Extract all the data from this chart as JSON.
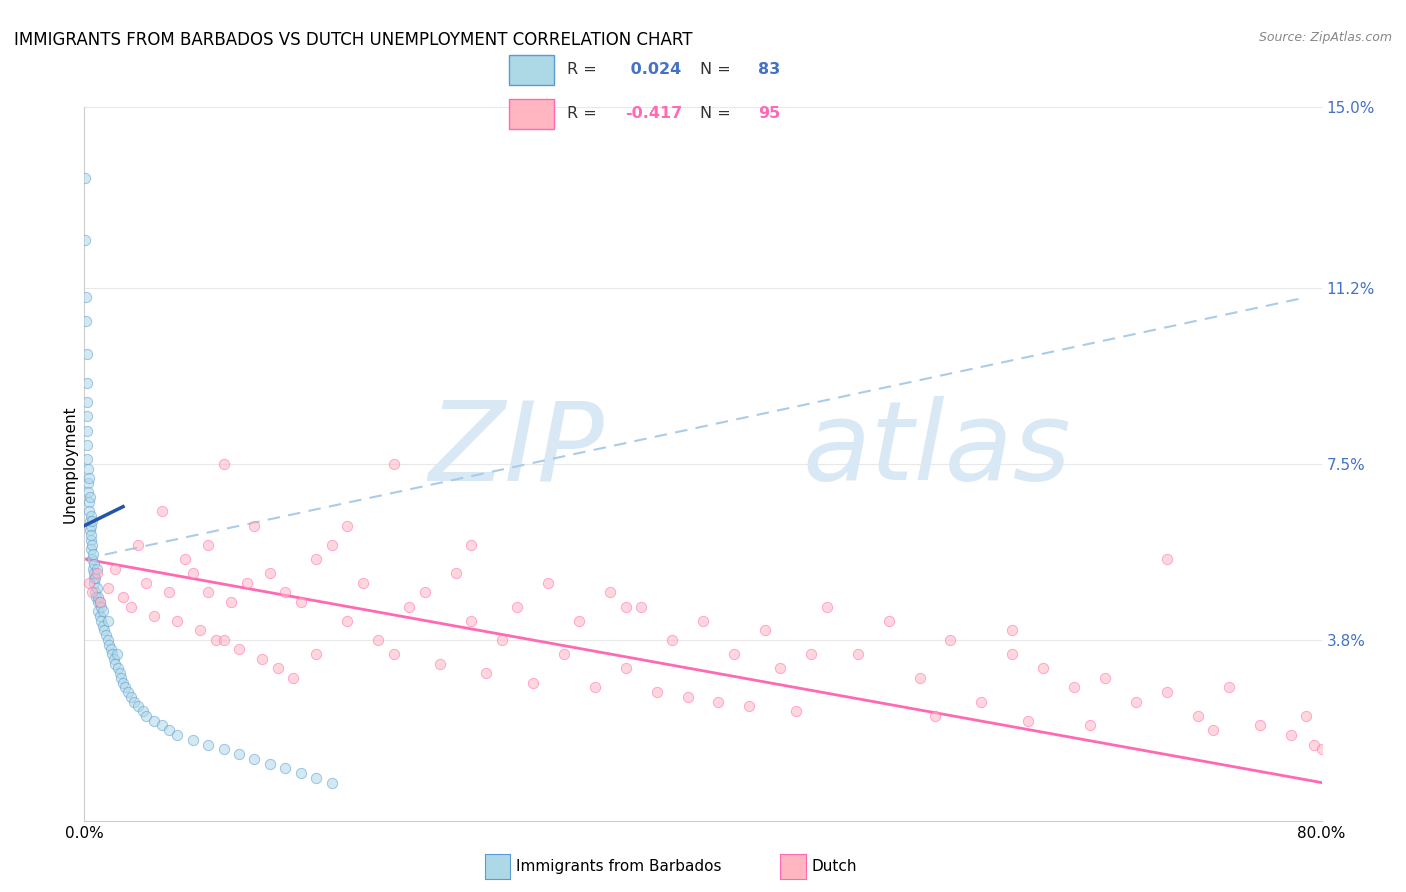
{
  "title": "IMMIGRANTS FROM BARBADOS VS DUTCH UNEMPLOYMENT CORRELATION CHART",
  "source": "Source: ZipAtlas.com",
  "ylabel": "Unemployment",
  "xmin": 0.0,
  "xmax": 80.0,
  "ymin": 0.0,
  "ymax": 15.0,
  "ytick_positions": [
    0.0,
    3.8,
    7.5,
    11.2,
    15.0
  ],
  "ytick_labels": [
    "",
    "3.8%",
    "7.5%",
    "11.2%",
    "15.0%"
  ],
  "xtick_positions": [
    0,
    20,
    40,
    60,
    80
  ],
  "xtick_labels": [
    "0.0%",
    "",
    "",
    "",
    "80.0%"
  ],
  "series_blue": {
    "label": "Immigrants from Barbados",
    "R": "0.024",
    "N": "83",
    "color": "#ADD8E6",
    "edge_color": "#5B9BD5",
    "x": [
      0.05,
      0.05,
      0.1,
      0.1,
      0.15,
      0.15,
      0.15,
      0.2,
      0.2,
      0.2,
      0.2,
      0.25,
      0.25,
      0.25,
      0.3,
      0.3,
      0.3,
      0.35,
      0.35,
      0.35,
      0.4,
      0.4,
      0.4,
      0.45,
      0.45,
      0.5,
      0.5,
      0.5,
      0.55,
      0.55,
      0.6,
      0.6,
      0.65,
      0.65,
      0.7,
      0.7,
      0.75,
      0.8,
      0.8,
      0.85,
      0.9,
      0.9,
      1.0,
      1.0,
      1.1,
      1.1,
      1.2,
      1.2,
      1.3,
      1.4,
      1.5,
      1.5,
      1.6,
      1.7,
      1.8,
      1.9,
      2.0,
      2.1,
      2.2,
      2.3,
      2.4,
      2.5,
      2.6,
      2.8,
      3.0,
      3.2,
      3.5,
      3.8,
      4.0,
      4.5,
      5.0,
      5.5,
      6.0,
      7.0,
      8.0,
      9.0,
      10.0,
      11.0,
      12.0,
      13.0,
      14.0,
      15.0,
      16.0
    ],
    "y": [
      13.5,
      12.2,
      11.0,
      10.5,
      9.8,
      9.2,
      8.8,
      8.5,
      8.2,
      7.9,
      7.6,
      7.4,
      7.1,
      6.9,
      6.7,
      6.5,
      7.2,
      6.3,
      6.8,
      6.1,
      6.4,
      5.9,
      6.2,
      5.7,
      6.0,
      5.5,
      5.8,
      6.3,
      5.3,
      5.6,
      5.1,
      5.4,
      5.0,
      5.2,
      4.8,
      5.1,
      4.7,
      4.9,
      5.3,
      4.6,
      4.4,
      4.7,
      4.3,
      4.6,
      4.2,
      4.5,
      4.1,
      4.4,
      4.0,
      3.9,
      3.8,
      4.2,
      3.7,
      3.6,
      3.5,
      3.4,
      3.3,
      3.5,
      3.2,
      3.1,
      3.0,
      2.9,
      2.8,
      2.7,
      2.6,
      2.5,
      2.4,
      2.3,
      2.2,
      2.1,
      2.0,
      1.9,
      1.8,
      1.7,
      1.6,
      1.5,
      1.4,
      1.3,
      1.2,
      1.1,
      1.0,
      0.9,
      0.8
    ]
  },
  "series_pink": {
    "label": "Dutch",
    "R": "-0.417",
    "N": "95",
    "color": "#FFB6C1",
    "edge_color": "#FF69B4",
    "x": [
      0.3,
      0.5,
      0.8,
      1.0,
      1.5,
      2.0,
      2.5,
      3.0,
      3.5,
      4.0,
      4.5,
      5.0,
      5.5,
      6.0,
      6.5,
      7.0,
      7.5,
      8.0,
      8.5,
      9.0,
      9.5,
      10.0,
      10.5,
      11.0,
      11.5,
      12.0,
      12.5,
      13.0,
      13.5,
      14.0,
      15.0,
      15.0,
      16.0,
      17.0,
      18.0,
      19.0,
      20.0,
      20.0,
      21.0,
      22.0,
      23.0,
      24.0,
      25.0,
      26.0,
      27.0,
      28.0,
      29.0,
      30.0,
      31.0,
      32.0,
      33.0,
      34.0,
      35.0,
      36.0,
      37.0,
      38.0,
      39.0,
      40.0,
      41.0,
      42.0,
      43.0,
      44.0,
      45.0,
      46.0,
      48.0,
      50.0,
      52.0,
      54.0,
      55.0,
      56.0,
      58.0,
      60.0,
      61.0,
      62.0,
      64.0,
      65.0,
      66.0,
      68.0,
      70.0,
      72.0,
      73.0,
      74.0,
      76.0,
      78.0,
      79.0,
      79.5,
      80.0,
      8.0,
      9.0,
      17.0,
      25.0,
      35.0,
      47.0,
      60.0,
      70.0
    ],
    "y": [
      5.0,
      4.8,
      5.2,
      4.6,
      4.9,
      5.3,
      4.7,
      4.5,
      5.8,
      5.0,
      4.3,
      6.5,
      4.8,
      4.2,
      5.5,
      5.2,
      4.0,
      5.8,
      3.8,
      7.5,
      4.6,
      3.6,
      5.0,
      6.2,
      3.4,
      5.2,
      3.2,
      4.8,
      3.0,
      4.6,
      3.5,
      5.5,
      5.8,
      4.2,
      5.0,
      3.8,
      3.5,
      7.5,
      4.5,
      4.8,
      3.3,
      5.2,
      4.2,
      3.1,
      3.8,
      4.5,
      2.9,
      5.0,
      3.5,
      4.2,
      2.8,
      4.8,
      3.2,
      4.5,
      2.7,
      3.8,
      2.6,
      4.2,
      2.5,
      3.5,
      2.4,
      4.0,
      3.2,
      2.3,
      4.5,
      3.5,
      4.2,
      3.0,
      2.2,
      3.8,
      2.5,
      3.5,
      2.1,
      3.2,
      2.8,
      2.0,
      3.0,
      2.5,
      2.7,
      2.2,
      1.9,
      2.8,
      2.0,
      1.8,
      2.2,
      1.6,
      1.5,
      4.8,
      3.8,
      6.2,
      5.8,
      4.5,
      3.5,
      4.0,
      5.5
    ]
  },
  "blue_trend": {
    "x_start": 0.0,
    "x_end": 79.0,
    "y_start": 5.5,
    "y_end": 11.0,
    "color": "#AACCE8",
    "linewidth": 1.5
  },
  "pink_trend": {
    "x_start": 0.0,
    "x_end": 80.0,
    "y_start": 5.5,
    "y_end": 0.8,
    "color": "#FF69B4",
    "linewidth": 2.0
  },
  "blue_solid_line": {
    "x_start": 0.0,
    "x_end": 2.5,
    "y_start": 6.2,
    "y_end": 6.6,
    "color": "#2255AA",
    "linewidth": 2.5
  },
  "watermark_line1": "ZIP",
  "watermark_line2": "atlas",
  "watermark_color": "#D8E8F4",
  "background_color": "#FFFFFF",
  "grid_color": "#E8E8E8",
  "title_fontsize": 12,
  "tick_fontsize": 11,
  "scatter_size": 55,
  "scatter_alpha": 0.55,
  "legend_R_color": "#4472C4",
  "legend_pink_color": "#FF69B4"
}
